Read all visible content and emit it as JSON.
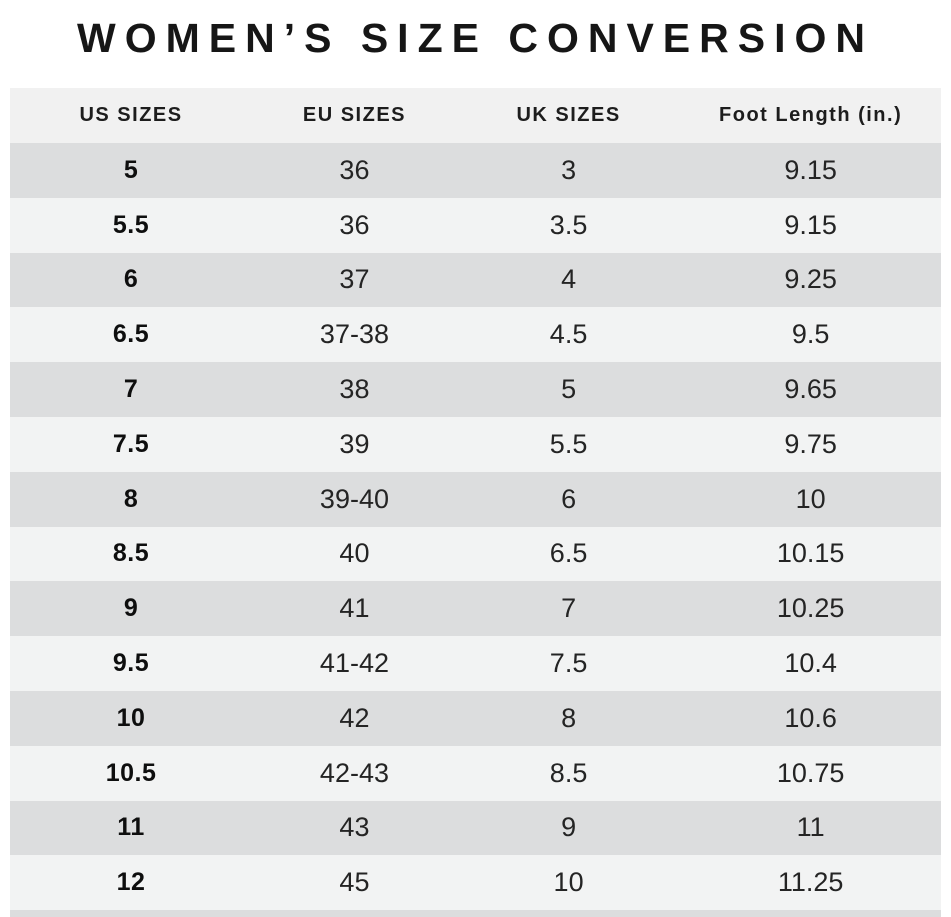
{
  "chart_data": {
    "type": "table",
    "title": "WOMEN’S SIZE CONVERSION",
    "columns": [
      "US SIZES",
      "EU SIZES",
      "UK SIZES",
      "Foot Length (in.)"
    ],
    "rows": [
      [
        "5",
        "36",
        "3",
        "9.15"
      ],
      [
        "5.5",
        "36",
        "3.5",
        "9.15"
      ],
      [
        "6",
        "37",
        "4",
        "9.25"
      ],
      [
        "6.5",
        "37-38",
        "4.5",
        "9.5"
      ],
      [
        "7",
        "38",
        "5",
        "9.65"
      ],
      [
        "7.5",
        "39",
        "5.5",
        "9.75"
      ],
      [
        "8",
        "39-40",
        "6",
        "10"
      ],
      [
        "8.5",
        "40",
        "6.5",
        "10.15"
      ],
      [
        "9",
        "41",
        "7",
        "10.25"
      ],
      [
        "9.5",
        "41-42",
        "7.5",
        "10.4"
      ],
      [
        "10",
        "42",
        "8",
        "10.6"
      ],
      [
        "10.5",
        "42-43",
        "8.5",
        "10.75"
      ],
      [
        "11",
        "43",
        "9",
        "11"
      ],
      [
        "12",
        "45",
        "10",
        "11.25"
      ]
    ],
    "layout": {
      "grid": false,
      "striped": true,
      "first_data_row_shade": "dark"
    }
  },
  "colors": {
    "header_bg": "#f1f1f1",
    "row_dark": "#dcddde",
    "row_light": "#f2f3f3",
    "title_text": "#161616"
  }
}
